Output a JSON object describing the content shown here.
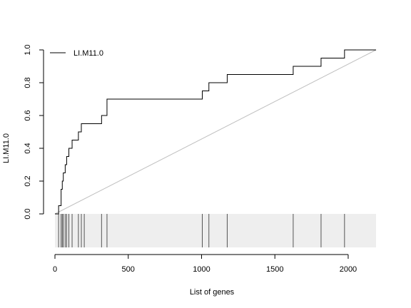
{
  "chart_data": {
    "type": "line",
    "title": "",
    "xlabel": "List of genes",
    "ylabel": "LI.M11.0",
    "xlim": [
      0,
      2190
    ],
    "ylim": [
      0,
      1
    ],
    "x_ticks": [
      0,
      500,
      1000,
      1500,
      2000
    ],
    "y_ticks": [
      0.0,
      0.2,
      0.4,
      0.6,
      0.8,
      1.0
    ],
    "y_tick_labels": [
      "0.0",
      "0.2",
      "0.4",
      "0.6",
      "0.8",
      "1.0"
    ],
    "legend": {
      "position": "top-left",
      "entries": [
        "LI.M11.0"
      ]
    },
    "series": [
      {
        "name": "LI.M11.0",
        "style": "step",
        "color": "#000000",
        "x": [
          0,
          25,
          42,
          50,
          57,
          70,
          80,
          95,
          117,
          160,
          180,
          200,
          318,
          355,
          1005,
          1050,
          1175,
          1625,
          1815,
          1975,
          2190
        ],
        "y": [
          0.0,
          0.05,
          0.15,
          0.2,
          0.25,
          0.3,
          0.35,
          0.4,
          0.45,
          0.5,
          0.55,
          0.55,
          0.6,
          0.7,
          0.75,
          0.8,
          0.85,
          0.9,
          0.95,
          1.0,
          1.0
        ]
      }
    ],
    "reference_line": {
      "x": [
        0,
        2190
      ],
      "y": [
        0,
        1
      ],
      "color": "#bfbfbf"
    },
    "rug": {
      "positions": [
        25,
        42,
        50,
        57,
        70,
        80,
        95,
        117,
        160,
        180,
        200,
        318,
        355,
        1005,
        1050,
        1175,
        1625,
        1815,
        1975
      ],
      "band_color": "#eeeeee",
      "tick_color": "#555555"
    }
  }
}
